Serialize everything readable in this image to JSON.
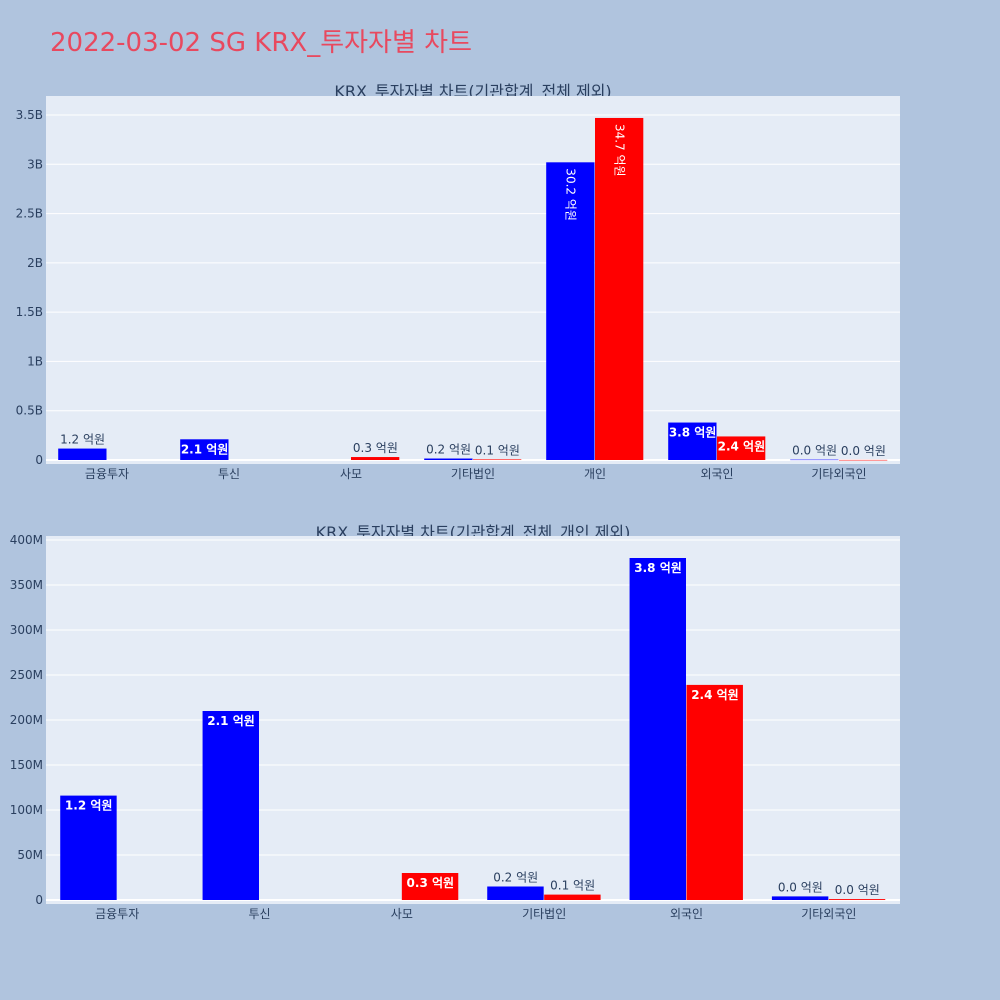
{
  "page": {
    "title": "2022-03-02 SG KRX_투자자별 차트"
  },
  "colors": {
    "background": "#b0c4de",
    "plot_bg": "#e5ecf6",
    "buy": "#0000ff",
    "sell": "#ff0000",
    "title": "#e8495f",
    "text": "#2a3f5f"
  },
  "chart_data": [
    {
      "type": "bar",
      "title": "KRX_투자자별 차트(기관합계_전체 제외)",
      "categories": [
        "금융투자",
        "투신",
        "사모",
        "기타법인",
        "개인",
        "외국인",
        "기타외국인"
      ],
      "ylim": [
        0,
        3500000000
      ],
      "yticks": [
        0,
        500000000,
        1000000000,
        1500000000,
        2000000000,
        2500000000,
        3000000000,
        3500000000
      ],
      "ytick_labels": [
        "0",
        "0.5B",
        "1B",
        "1.5B",
        "2B",
        "2.5B",
        "3B",
        "3.5B"
      ],
      "grid": true,
      "series": [
        {
          "color": "#0000ff",
          "values": [
            116000000,
            210000000,
            null,
            15000000,
            3020000000,
            380000000,
            4000000
          ],
          "labels": [
            "1.2 억원",
            "2.1 억원",
            null,
            "0.2 억원",
            "30.2 억원",
            "3.8 억원",
            "0.0 억원"
          ]
        },
        {
          "color": "#ff0000",
          "values": [
            null,
            null,
            30000000,
            6000000,
            3470000000,
            239000000,
            1000000
          ],
          "labels": [
            null,
            null,
            "0.3 억원",
            "0.1 억원",
            "34.7 억원",
            "2.4 억원",
            "0.0 억원"
          ]
        }
      ]
    },
    {
      "type": "bar",
      "title": "KRX_투자자별 차트(기관합계_전체_개인 제외)",
      "categories": [
        "금융투자",
        "투신",
        "사모",
        "기타법인",
        "외국인",
        "기타외국인"
      ],
      "ylim": [
        0,
        400000000
      ],
      "yticks": [
        0,
        50000000,
        100000000,
        150000000,
        200000000,
        250000000,
        300000000,
        350000000,
        400000000
      ],
      "ytick_labels": [
        "0",
        "50M",
        "100M",
        "150M",
        "200M",
        "250M",
        "300M",
        "350M",
        "400M"
      ],
      "grid": true,
      "series": [
        {
          "color": "#0000ff",
          "values": [
            116000000,
            210000000,
            null,
            15000000,
            380000000,
            4000000
          ],
          "labels": [
            "1.2 억원",
            "2.1 억원",
            null,
            "0.2 억원",
            "3.8 억원",
            "0.0 억원"
          ]
        },
        {
          "color": "#ff0000",
          "values": [
            null,
            null,
            30000000,
            6000000,
            239000000,
            1000000
          ],
          "labels": [
            null,
            null,
            "0.3 억원",
            "0.1 억원",
            "2.4 억원",
            "0.0 억원"
          ]
        }
      ]
    }
  ]
}
